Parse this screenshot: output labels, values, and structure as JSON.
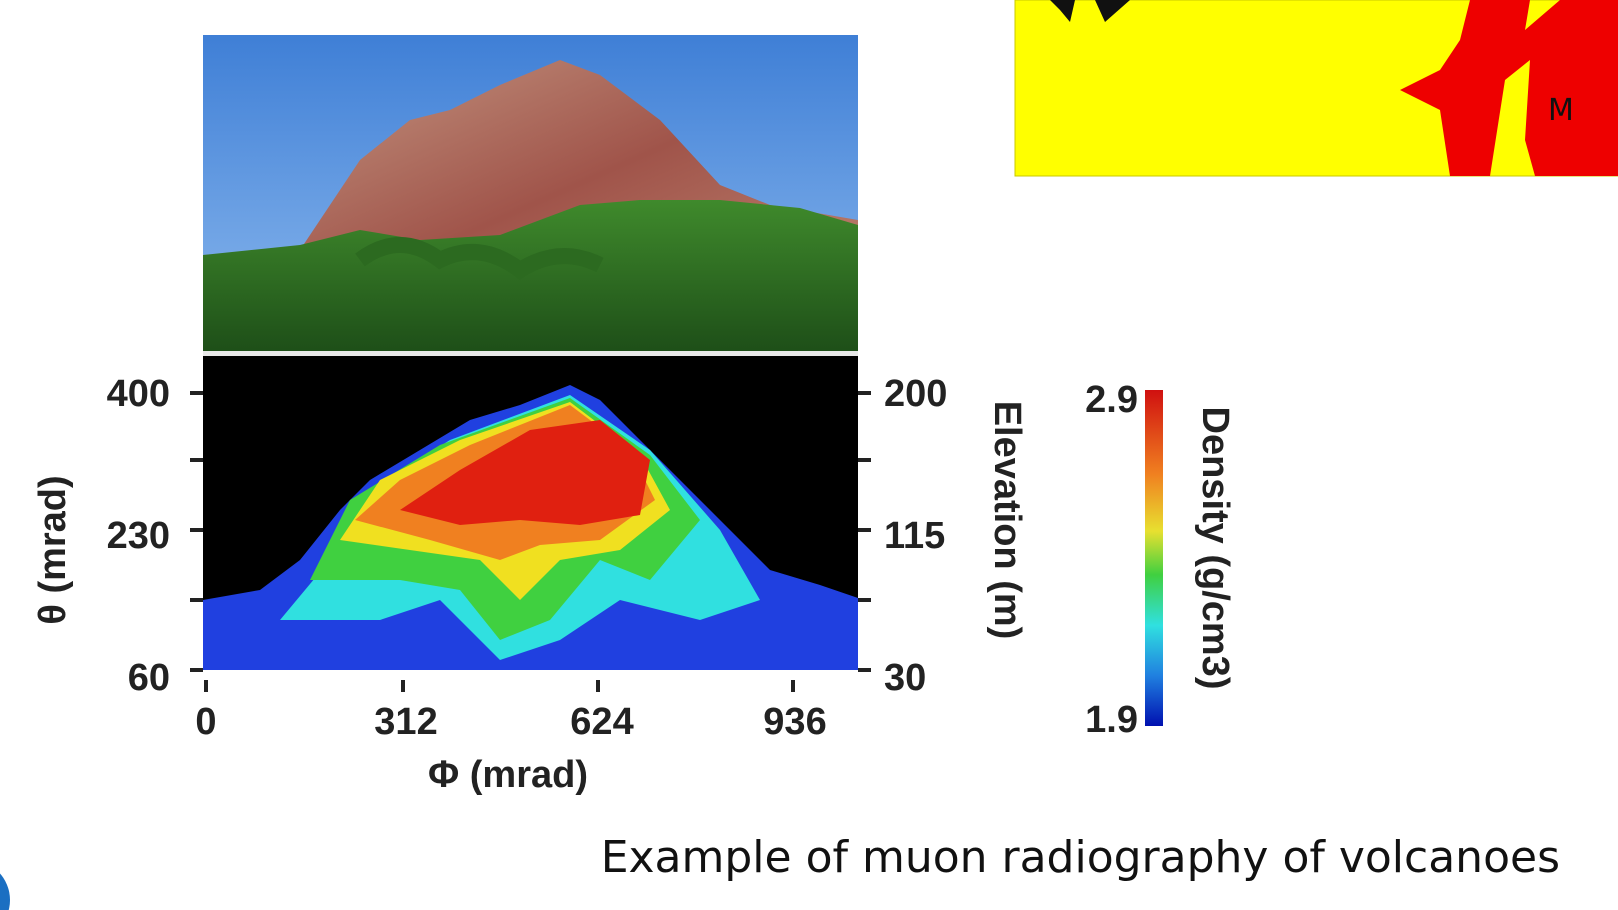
{
  "figure": {
    "left_axis": {
      "label": "θ (mrad)",
      "ticks": [
        "400",
        "230",
        "60"
      ]
    },
    "right_axis": {
      "label": "Elevation (m)",
      "ticks": [
        "200",
        "115",
        "30"
      ]
    },
    "x_axis": {
      "label": "Φ (mrad)",
      "ticks": [
        "0",
        "312",
        "624",
        "936"
      ]
    },
    "colorbar": {
      "label": "Density (g/cm3)",
      "max": "2.9",
      "min": "1.9"
    }
  },
  "caption": "Example of muon radiography of volcanoes",
  "inset": {
    "text": "M"
  }
}
